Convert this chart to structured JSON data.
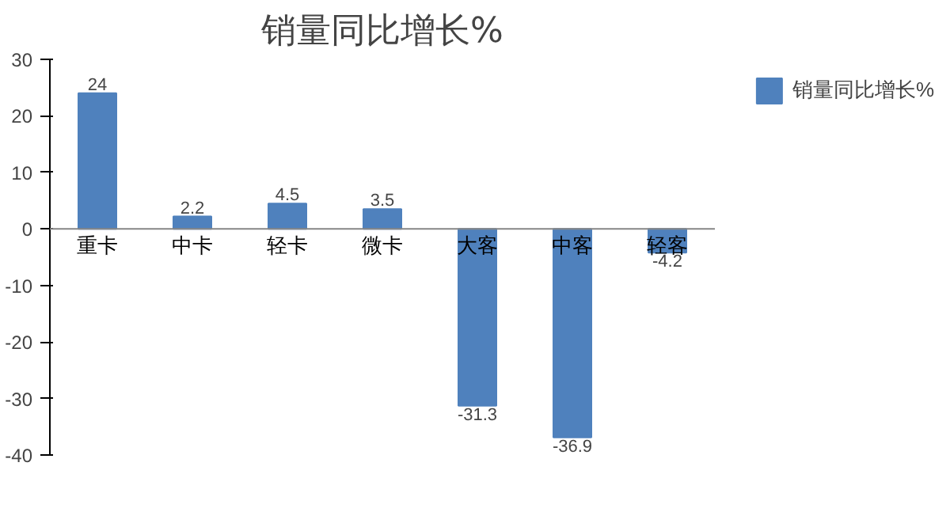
{
  "chart_data": {
    "type": "bar",
    "title": "销量同比增长%",
    "categories": [
      "重卡",
      "中卡",
      "轻卡",
      "微卡",
      "大客",
      "中客",
      "轻客"
    ],
    "series": [
      {
        "name": "销量同比增长%",
        "color": "#4f81bd",
        "values": [
          24,
          2.2,
          4.5,
          3.5,
          -31.3,
          -36.9,
          -4.2
        ]
      }
    ],
    "ylim": [
      -40,
      30
    ],
    "yticks": [
      -40,
      -30,
      -20,
      -10,
      0,
      10,
      20,
      30
    ],
    "data_labels": true,
    "grid": false,
    "legend": "right"
  }
}
